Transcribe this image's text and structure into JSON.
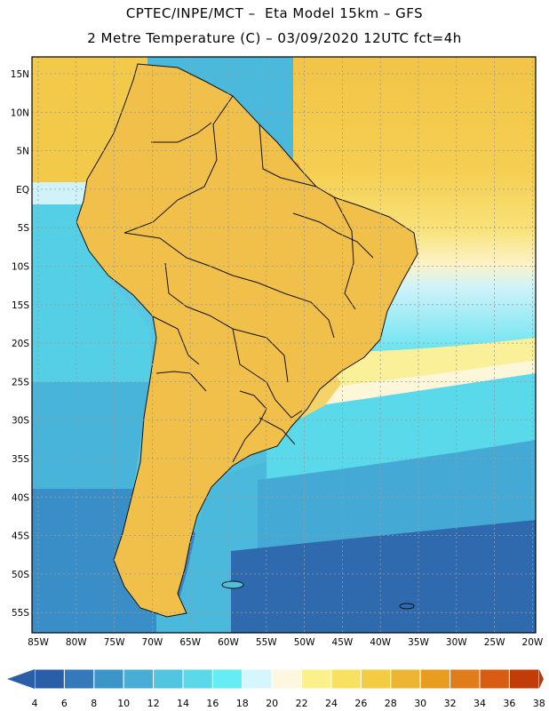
{
  "header": {
    "title_line1": "CPTEC/INPE/MCT –  Eta Model 15km – GFS",
    "title_line2": "2 Metre Temperature (C) – 03/09/2020 12UTC fct=4h"
  },
  "map": {
    "lat_labels": [
      "15N",
      "10N",
      "5N",
      "EQ",
      "5S",
      "10S",
      "15S",
      "20S",
      "25S",
      "30S",
      "35S",
      "40S",
      "45S",
      "50S",
      "55S"
    ],
    "lon_labels": [
      "85W",
      "80W",
      "75W",
      "70W",
      "65W",
      "60W",
      "55W",
      "50W",
      "45W",
      "40W",
      "35W",
      "30W",
      "25W",
      "20W"
    ]
  },
  "legend": {
    "values": [
      "4",
      "6",
      "8",
      "10",
      "12",
      "14",
      "16",
      "18",
      "20",
      "22",
      "24",
      "26",
      "28",
      "30",
      "32",
      "34",
      "36",
      "38"
    ],
    "colors": [
      "#2a5fa8",
      "#3579ba",
      "#3c95c9",
      "#48aed6",
      "#52c6e0",
      "#5cd9e8",
      "#66ecf4",
      "#d4f6fc",
      "#fdf7e2",
      "#fbf08c",
      "#f8e060",
      "#f3cc44",
      "#ecb634",
      "#e89c20",
      "#e07c1c",
      "#d85c12",
      "#c23c08"
    ],
    "low_color": "#2b5ea6",
    "high_color": "#b43810"
  }
}
